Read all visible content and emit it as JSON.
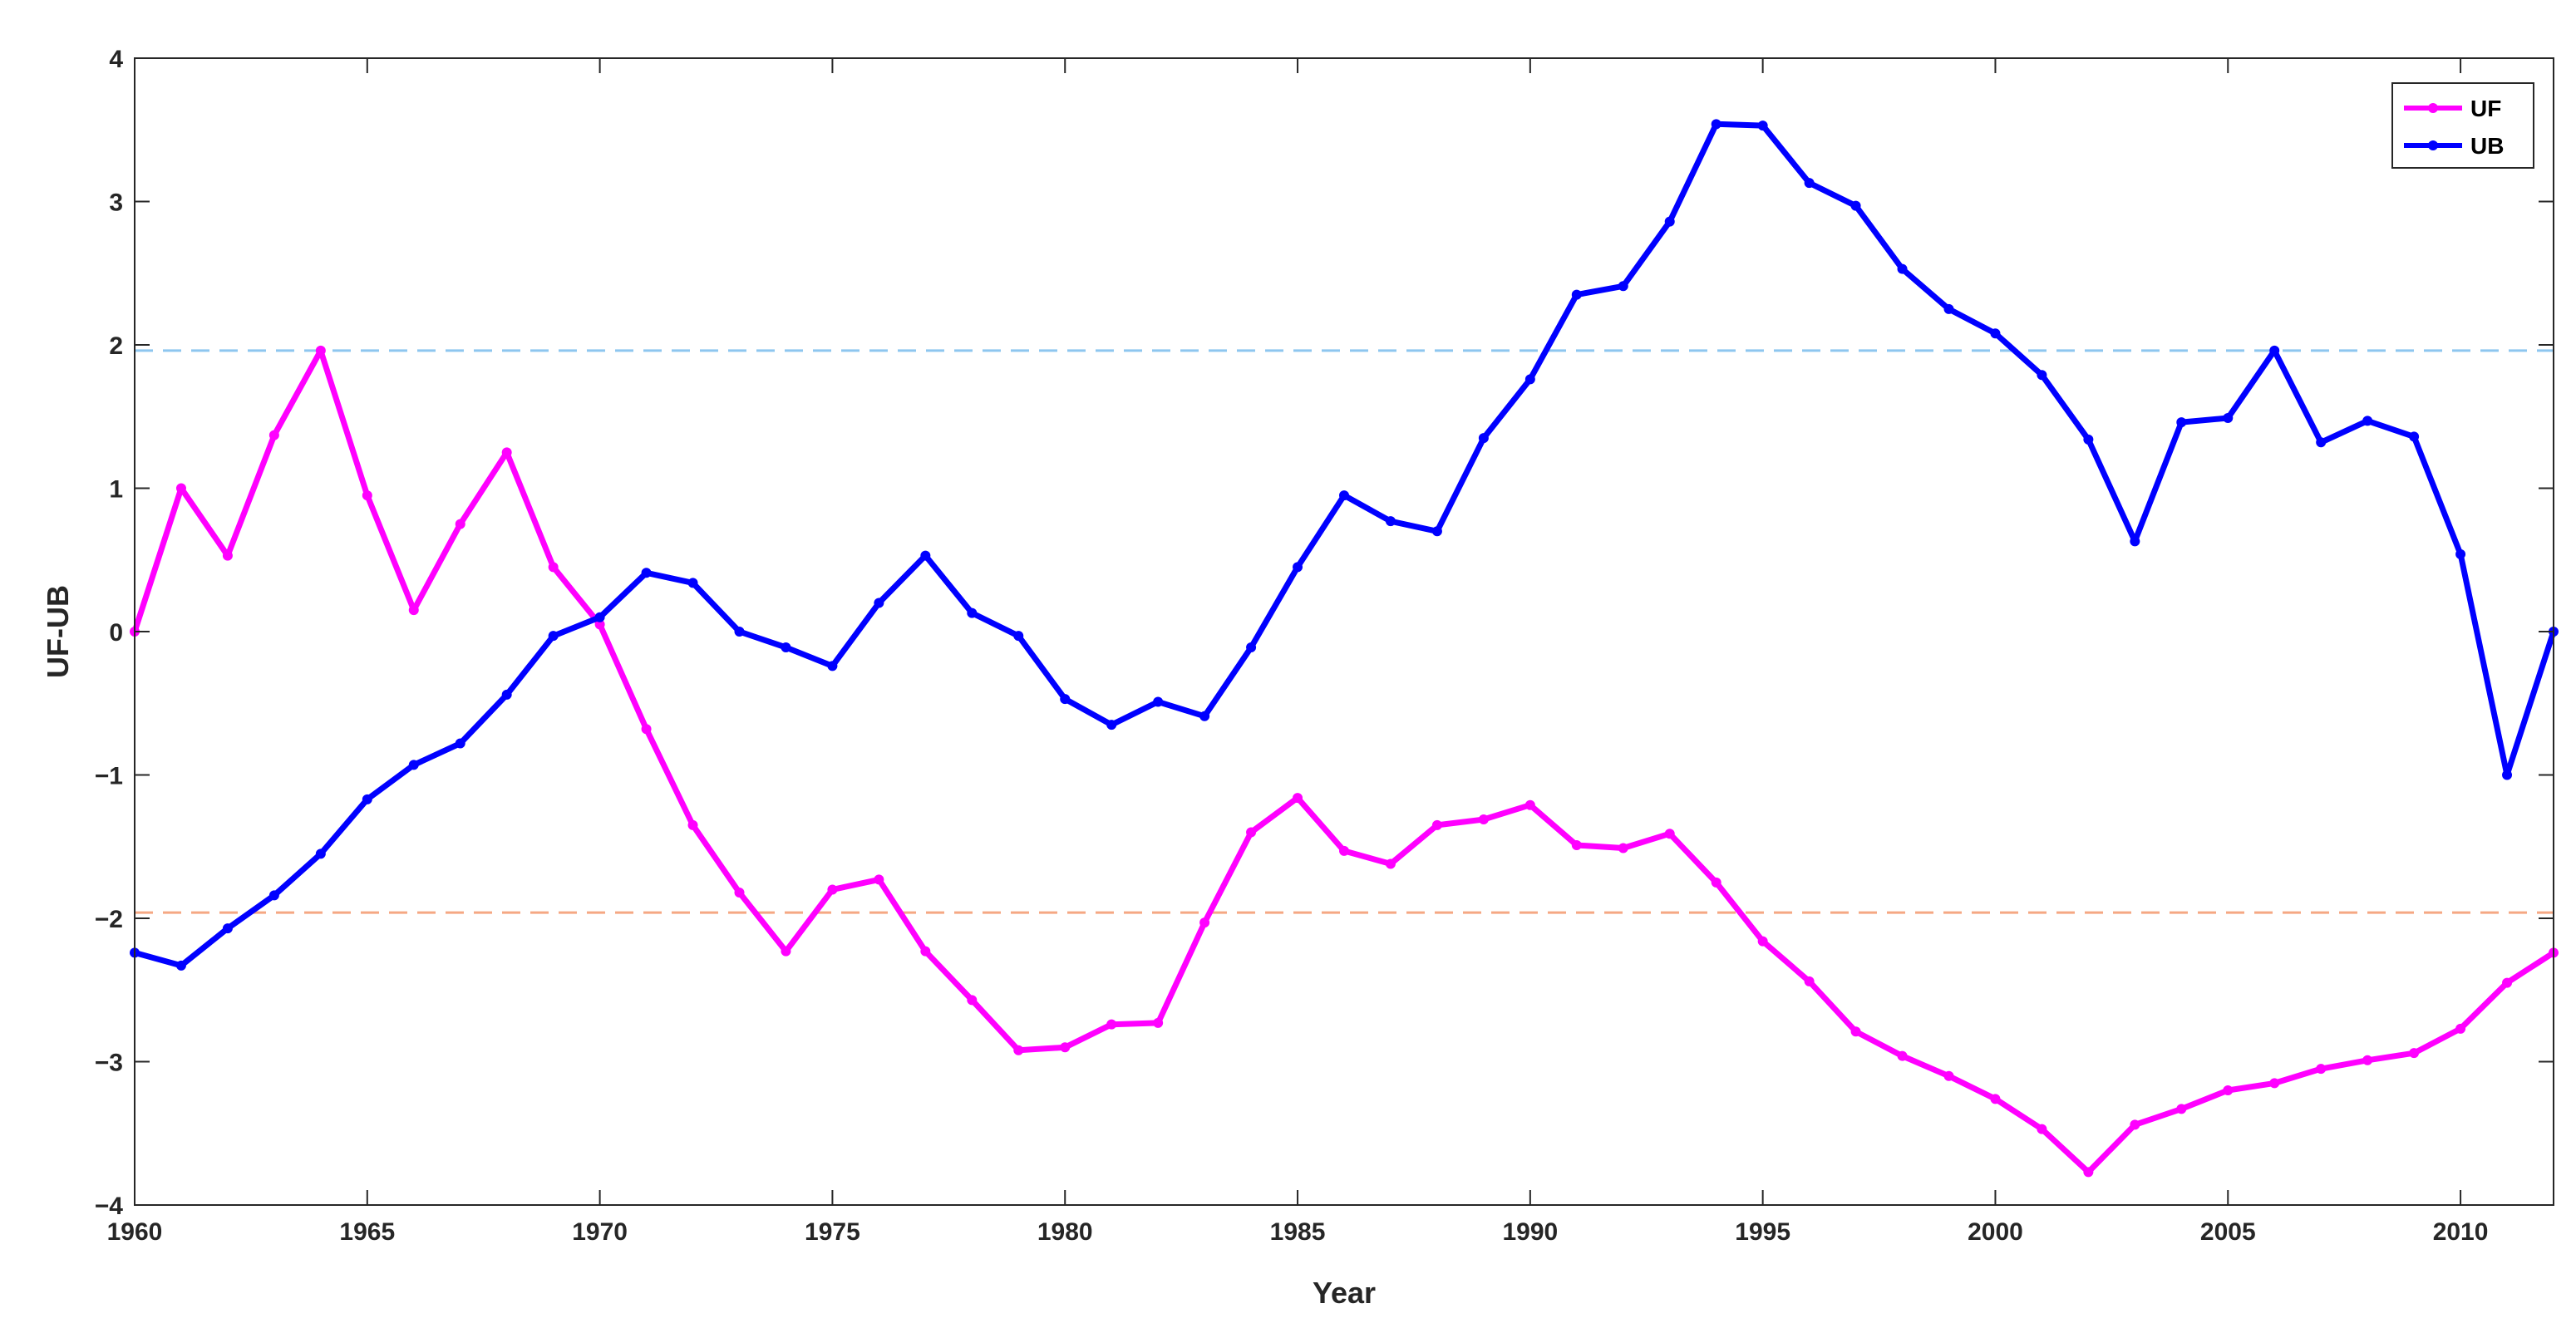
{
  "chart_data": {
    "type": "line",
    "xlabel": "Year",
    "ylabel": "UF-UB",
    "xlim": [
      1960,
      2012
    ],
    "ylim": [
      -4,
      4
    ],
    "x_ticks": [
      1960,
      1965,
      1970,
      1975,
      1980,
      1985,
      1990,
      1995,
      2000,
      2005,
      2010
    ],
    "y_ticks": [
      -4,
      -3,
      -2,
      -1,
      0,
      1,
      2,
      3,
      4
    ],
    "y_tick_labels": [
      "−4",
      "−3",
      "−2",
      "−1",
      "0",
      "1",
      "2",
      "3",
      "4"
    ],
    "grid": false,
    "legend_position": "top-right",
    "x": [
      1960,
      1961,
      1962,
      1963,
      1964,
      1965,
      1966,
      1967,
      1968,
      1969,
      1970,
      1971,
      1972,
      1973,
      1974,
      1975,
      1976,
      1977,
      1978,
      1979,
      1980,
      1981,
      1982,
      1983,
      1984,
      1985,
      1986,
      1987,
      1988,
      1989,
      1990,
      1991,
      1992,
      1993,
      1994,
      1995,
      1996,
      1997,
      1998,
      1999,
      2000,
      2001,
      2002,
      2003,
      2004,
      2005,
      2006,
      2007,
      2008,
      2009,
      2010,
      2011,
      2012
    ],
    "series": [
      {
        "name": "UF",
        "color": "#ff00ff",
        "values": [
          0.0,
          1.0,
          0.53,
          1.37,
          1.96,
          0.95,
          0.15,
          0.75,
          1.25,
          0.45,
          0.05,
          -0.68,
          -1.35,
          -1.82,
          -2.23,
          -1.8,
          -1.73,
          -2.23,
          -2.57,
          -2.92,
          -2.9,
          -2.74,
          -2.73,
          -2.03,
          -1.4,
          -1.16,
          -1.53,
          -1.62,
          -1.35,
          -1.31,
          -1.21,
          -1.49,
          -1.51,
          -1.41,
          -1.75,
          -2.16,
          -2.44,
          -2.79,
          -2.96,
          -3.1,
          -3.26,
          -3.47,
          -3.77,
          -3.44,
          -3.33,
          -3.2,
          -3.15,
          -3.05,
          -2.99,
          -2.94,
          -2.77,
          -2.45,
          -2.24
        ]
      },
      {
        "name": "UB",
        "color": "#0000ff",
        "values": [
          -2.24,
          -2.33,
          -2.07,
          -1.84,
          -1.55,
          -1.17,
          -0.93,
          -0.78,
          -0.44,
          -0.03,
          0.1,
          0.41,
          0.34,
          0.0,
          -0.11,
          -0.24,
          0.2,
          0.53,
          0.13,
          -0.03,
          -0.47,
          -0.65,
          -0.49,
          -0.59,
          -0.11,
          0.45,
          0.95,
          0.77,
          0.7,
          1.35,
          1.76,
          2.35,
          2.41,
          2.86,
          3.54,
          3.53,
          3.13,
          2.97,
          2.53,
          2.25,
          2.08,
          1.79,
          1.34,
          0.63,
          1.46,
          1.49,
          1.96,
          1.32,
          1.47,
          1.36,
          0.54,
          -1.0,
          0.0
        ]
      }
    ],
    "reference_lines": [
      {
        "y": 1.96,
        "color": "#8ec6ef",
        "style": "dashed"
      },
      {
        "y": -1.96,
        "color": "#f5a883",
        "style": "dashed"
      }
    ]
  }
}
